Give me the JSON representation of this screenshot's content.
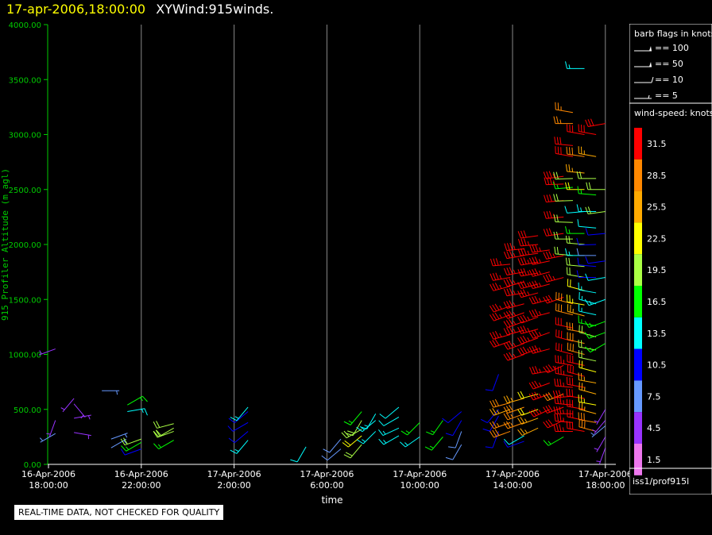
{
  "header": {
    "date": "17-apr-2006,18:00:00",
    "name": "XYWind:915winds."
  },
  "notice": "REAL-TIME DATA, NOT CHECKED FOR QUALITY",
  "legend": {
    "barb_title": "barb flags in knots",
    "barb_items": [
      "== 100",
      "== 50",
      "== 10",
      "== 5"
    ],
    "speed_title": "wind-speed: knots",
    "footer": "iss1/prof915l"
  },
  "colors": {
    "axis": "#00cc00",
    "grid": "#888888",
    "scale": [
      "#ff0000",
      "#ff8800",
      "#ffaa00",
      "#ffff00",
      "#aaff44",
      "#00ff00",
      "#00ffff",
      "#0000ff",
      "#6699ff",
      "#9933ff",
      "#ee77ee"
    ]
  },
  "chart_data": {
    "type": "scatter",
    "title": "XYWind:915winds.",
    "xlabel": "time",
    "ylabel": "915 Profiler Altitude (m agl)",
    "ylim": [
      0,
      4000
    ],
    "yticks": [
      "0.00",
      "500.00",
      "1000.00",
      "1500.00",
      "2000.00",
      "2500.00",
      "3000.00",
      "3500.00",
      "4000.00"
    ],
    "xticks": [
      {
        "d": "16-Apr-2006",
        "t": "18:00:00"
      },
      {
        "d": "16-Apr-2006",
        "t": "22:00:00"
      },
      {
        "d": "17-Apr-2006",
        "t": "2:00:00"
      },
      {
        "d": "17-Apr-2006",
        "t": "6:00:00"
      },
      {
        "d": "17-Apr-2006",
        "t": "10:00:00"
      },
      {
        "d": "17-Apr-2006",
        "t": "14:00:00"
      },
      {
        "d": "17-Apr-2006",
        "t": "18:00:00"
      }
    ],
    "xlim_hours": [
      0,
      24.2
    ],
    "speed_scale": [
      "31.5",
      "28.5",
      "25.5",
      "22.5",
      "19.5",
      "16.5",
      "13.5",
      "10.5",
      "7.5",
      "4.5",
      "1.5"
    ],
    "grid": "vertical",
    "series": [
      {
        "h": 0.3,
        "barbs": [
          [
            280,
            240,
            6
          ],
          [
            400,
            200,
            4
          ],
          [
            1050,
            250,
            5
          ]
        ]
      },
      {
        "h": 1.1,
        "barbs": [
          [
            290,
            100,
            5
          ],
          [
            420,
            80,
            4
          ],
          [
            550,
            140,
            5
          ],
          [
            600,
            220,
            5
          ]
        ]
      },
      {
        "h": 2.3,
        "barbs": [
          [
            670,
            90,
            6
          ]
        ]
      },
      {
        "h": 2.7,
        "barbs": [
          [
            150,
            60,
            7
          ],
          [
            230,
            70,
            7
          ]
        ]
      },
      {
        "h": 3.4,
        "barbs": [
          [
            480,
            80,
            14
          ],
          [
            540,
            60,
            16
          ]
        ]
      },
      {
        "h": 4.0,
        "barbs": [
          [
            140,
            250,
            10
          ],
          [
            200,
            240,
            16
          ],
          [
            230,
            250,
            19
          ]
        ]
      },
      {
        "h": 5.4,
        "barbs": [
          [
            220,
            240,
            17
          ],
          [
            300,
            250,
            18
          ],
          [
            330,
            240,
            18
          ],
          [
            370,
            255,
            18
          ]
        ]
      },
      {
        "h": 8.6,
        "barbs": [
          [
            220,
            220,
            13
          ],
          [
            300,
            230,
            11
          ],
          [
            380,
            240,
            10
          ],
          [
            480,
            230,
            11
          ],
          [
            520,
            220,
            13
          ]
        ]
      },
      {
        "h": 11.1,
        "barbs": [
          [
            160,
            210,
            12
          ]
        ]
      },
      {
        "h": 12.6,
        "barbs": [
          [
            140,
            230,
            8
          ],
          [
            230,
            220,
            8
          ]
        ]
      },
      {
        "h": 13.5,
        "barbs": [
          [
            180,
            220,
            20
          ],
          [
            260,
            230,
            22
          ],
          [
            320,
            240,
            20
          ],
          [
            400,
            210,
            18
          ],
          [
            480,
            220,
            16
          ]
        ]
      },
      {
        "h": 14.1,
        "barbs": [
          [
            300,
            225,
            14
          ],
          [
            400,
            230,
            14
          ],
          [
            460,
            210,
            14
          ]
        ]
      },
      {
        "h": 15.1,
        "barbs": [
          [
            260,
            240,
            14
          ],
          [
            330,
            245,
            13
          ],
          [
            430,
            240,
            12
          ],
          [
            520,
            230,
            12
          ]
        ]
      },
      {
        "h": 16.0,
        "barbs": [
          [
            250,
            235,
            14
          ],
          [
            380,
            225,
            15
          ]
        ]
      },
      {
        "h": 17.0,
        "barbs": [
          [
            250,
            220,
            16
          ],
          [
            400,
            215,
            15
          ]
        ]
      },
      {
        "h": 17.8,
        "barbs": [
          [
            180,
            210,
            8
          ],
          [
            300,
            200,
            8
          ],
          [
            400,
            210,
            9
          ],
          [
            480,
            230,
            10
          ]
        ]
      },
      {
        "h": 19.4,
        "barbs": [
          [
            300,
            200,
            11
          ],
          [
            440,
            210,
            10
          ],
          [
            500,
            220,
            11
          ],
          [
            820,
            200,
            10
          ]
        ]
      },
      {
        "h": 19.9,
        "barbs": [
          [
            380,
            250,
            27
          ],
          [
            300,
            250,
            28
          ],
          [
            500,
            250,
            26
          ],
          [
            560,
            255,
            29
          ],
          [
            1120,
            250,
            32
          ],
          [
            1180,
            255,
            33
          ],
          [
            1360,
            250,
            33
          ],
          [
            1440,
            250,
            34
          ],
          [
            1620,
            255,
            34
          ],
          [
            1700,
            260,
            33
          ],
          [
            1820,
            265,
            34
          ]
        ]
      },
      {
        "h": 20.5,
        "barbs": [
          [
            210,
            250,
            10
          ],
          [
            260,
            240,
            12
          ],
          [
            380,
            250,
            27
          ],
          [
            460,
            250,
            27
          ],
          [
            520,
            250,
            28
          ],
          [
            600,
            255,
            24
          ],
          [
            1000,
            250,
            33
          ],
          [
            1100,
            250,
            34
          ],
          [
            1220,
            255,
            33
          ],
          [
            1300,
            250,
            34
          ],
          [
            1380,
            250,
            34
          ],
          [
            1460,
            255,
            33
          ],
          [
            1560,
            260,
            34
          ],
          [
            1660,
            255,
            33
          ],
          [
            1750,
            260,
            34
          ],
          [
            1900,
            260,
            34
          ],
          [
            1960,
            265,
            33
          ]
        ]
      },
      {
        "h": 21.1,
        "barbs": [
          [
            330,
            245,
            24
          ],
          [
            420,
            250,
            24
          ],
          [
            500,
            250,
            22
          ],
          [
            640,
            255,
            22
          ],
          [
            1050,
            250,
            34
          ],
          [
            1150,
            250,
            33
          ],
          [
            1230,
            255,
            33
          ],
          [
            1340,
            250,
            34
          ],
          [
            1560,
            255,
            33
          ],
          [
            1640,
            255,
            34
          ],
          [
            1740,
            260,
            33
          ],
          [
            1840,
            260,
            33
          ],
          [
            1920,
            262,
            34
          ],
          [
            2000,
            265,
            33
          ],
          [
            2080,
            262,
            32
          ]
        ]
      },
      {
        "h": 21.6,
        "barbs": [
          [
            500,
            245,
            33
          ],
          [
            640,
            250,
            33
          ],
          [
            740,
            250,
            33
          ],
          [
            850,
            260,
            33
          ],
          [
            1050,
            255,
            34
          ],
          [
            1200,
            250,
            33
          ],
          [
            1380,
            255,
            34
          ],
          [
            1500,
            255,
            33
          ],
          [
            1640,
            255,
            33
          ],
          [
            1750,
            255,
            34
          ],
          [
            1850,
            258,
            34
          ],
          [
            1950,
            262,
            33
          ]
        ]
      },
      {
        "h": 22.2,
        "barbs": [
          [
            250,
            240,
            16
          ],
          [
            400,
            245,
            32
          ],
          [
            520,
            250,
            32
          ],
          [
            640,
            248,
            28
          ],
          [
            900,
            245,
            33
          ],
          [
            1520,
            250,
            32
          ],
          [
            1700,
            255,
            33
          ],
          [
            1900,
            258,
            33
          ],
          [
            2100,
            262,
            32
          ],
          [
            2250,
            265,
            33
          ],
          [
            2400,
            265,
            32
          ],
          [
            2550,
            268,
            33
          ],
          [
            2620,
            262,
            33
          ]
        ]
      },
      {
        "h": 22.6,
        "barbs": [
          [
            300,
            270,
            34
          ],
          [
            380,
            275,
            35
          ],
          [
            460,
            270,
            35
          ],
          [
            540,
            275,
            34
          ],
          [
            620,
            265,
            34
          ],
          [
            700,
            275,
            34
          ],
          [
            800,
            280,
            33
          ],
          [
            900,
            280,
            33
          ],
          [
            1000,
            285,
            30
          ],
          [
            1120,
            285,
            30
          ],
          [
            1240,
            282,
            30
          ],
          [
            1360,
            284,
            29
          ],
          [
            1460,
            285,
            28
          ],
          [
            1900,
            275,
            20
          ],
          [
            2050,
            270,
            20
          ],
          [
            2200,
            272,
            20
          ],
          [
            2400,
            268,
            18
          ],
          [
            2520,
            265,
            15
          ],
          [
            2600,
            268,
            19
          ],
          [
            2800,
            280,
            30
          ],
          [
            2900,
            275,
            30
          ],
          [
            3100,
            270,
            27
          ],
          [
            3200,
            280,
            27
          ]
        ]
      },
      {
        "h": 23.1,
        "barbs": [
          [
            300,
            280,
            31
          ],
          [
            400,
            282,
            31
          ],
          [
            500,
            280,
            32
          ],
          [
            600,
            278,
            32
          ],
          [
            700,
            280,
            30
          ],
          [
            800,
            285,
            31
          ],
          [
            900,
            282,
            30
          ],
          [
            1000,
            285,
            28
          ],
          [
            1100,
            283,
            28
          ],
          [
            1200,
            280,
            28
          ],
          [
            1350,
            285,
            26
          ],
          [
            1450,
            280,
            23
          ],
          [
            1580,
            285,
            21
          ],
          [
            1700,
            280,
            19
          ],
          [
            1800,
            275,
            19
          ],
          [
            1900,
            270,
            14
          ],
          [
            2000,
            275,
            18
          ],
          [
            2100,
            270,
            15
          ],
          [
            2300,
            265,
            12
          ],
          [
            2500,
            270,
            22
          ],
          [
            2650,
            275,
            25
          ],
          [
            2800,
            278,
            28
          ],
          [
            3000,
            280,
            30
          ],
          [
            3600,
            270,
            13
          ]
        ]
      },
      {
        "h": 23.6,
        "barbs": [
          [
            300,
            285,
            29
          ],
          [
            380,
            280,
            28
          ],
          [
            460,
            285,
            26
          ],
          [
            540,
            280,
            23
          ],
          [
            640,
            285,
            24
          ],
          [
            740,
            280,
            24
          ],
          [
            840,
            285,
            22
          ],
          [
            940,
            282,
            20
          ],
          [
            1040,
            280,
            19
          ],
          [
            1160,
            285,
            18
          ],
          [
            1260,
            280,
            16
          ],
          [
            1360,
            282,
            14
          ],
          [
            1460,
            285,
            14
          ],
          [
            1560,
            280,
            13
          ],
          [
            1700,
            270,
            10
          ],
          [
            1800,
            275,
            10
          ],
          [
            1900,
            270,
            8
          ],
          [
            2000,
            268,
            10
          ],
          [
            2150,
            275,
            12
          ],
          [
            2300,
            270,
            14
          ],
          [
            2450,
            275,
            16
          ],
          [
            2600,
            270,
            20
          ],
          [
            2800,
            280,
            25
          ],
          [
            3000,
            280,
            32
          ]
        ]
      },
      {
        "h": 24.0,
        "barbs": [
          [
            150,
            200,
            5
          ],
          [
            250,
            210,
            4
          ],
          [
            350,
            230,
            6
          ],
          [
            400,
            220,
            4
          ],
          [
            500,
            210,
            5
          ],
          [
            1100,
            240,
            15
          ],
          [
            1200,
            250,
            17
          ],
          [
            1300,
            250,
            15
          ],
          [
            1500,
            250,
            14
          ],
          [
            1700,
            260,
            12
          ],
          [
            1850,
            262,
            10
          ],
          [
            2100,
            265,
            11
          ],
          [
            2300,
            262,
            18
          ],
          [
            2500,
            270,
            20
          ],
          [
            3100,
            260,
            30
          ]
        ]
      }
    ]
  }
}
